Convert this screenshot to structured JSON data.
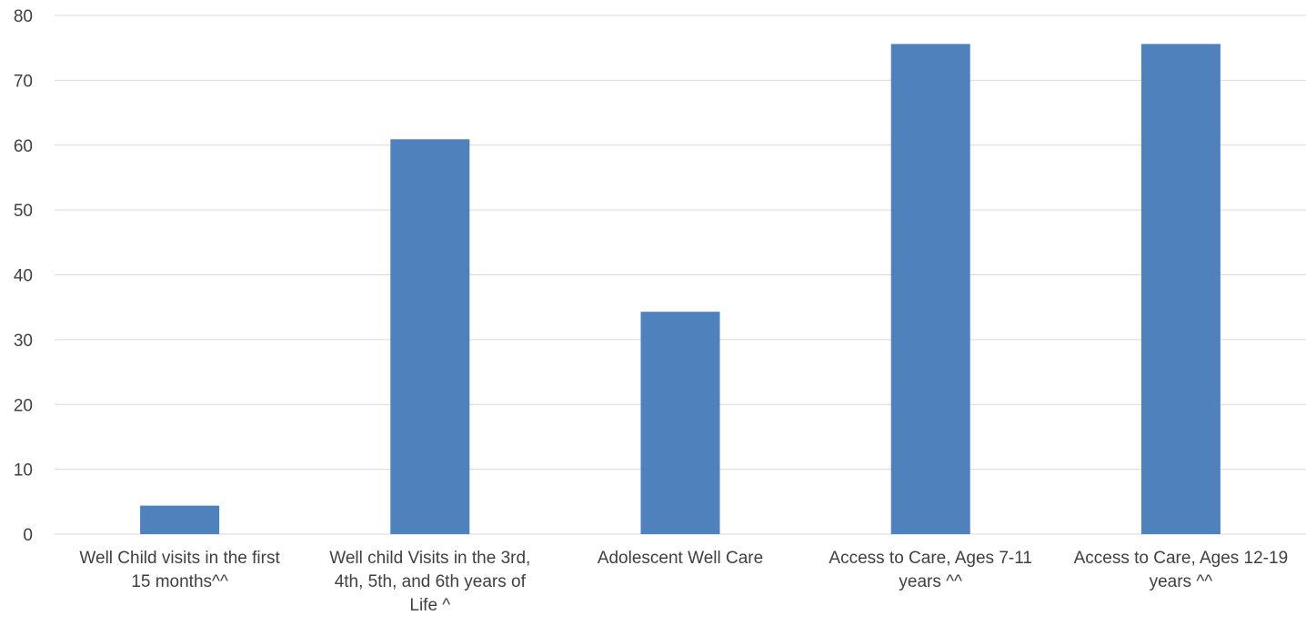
{
  "chart_data": {
    "type": "bar",
    "categories": [
      [
        "Well Child visits in the first",
        "15 months^^"
      ],
      [
        "Well child Visits in the  3rd,",
        "4th, 5th, and 6th years of",
        "Life ^"
      ],
      [
        "Adolescent Well Care"
      ],
      [
        "Access to Care, Ages 7-11",
        "years ^^"
      ],
      [
        "Access to Care, Ages 12-19",
        "years ^^"
      ]
    ],
    "values": [
      4.4,
      60.9,
      34.3,
      75.6,
      75.6
    ],
    "ylim": [
      0,
      80
    ],
    "yticks": [
      0,
      10,
      20,
      30,
      40,
      50,
      60,
      70,
      80
    ],
    "grid": true,
    "bar_color": "#4f81bd",
    "grid_color": "#d9d9d9",
    "text_color": "#404040",
    "title": "",
    "xlabel": "",
    "ylabel": ""
  }
}
